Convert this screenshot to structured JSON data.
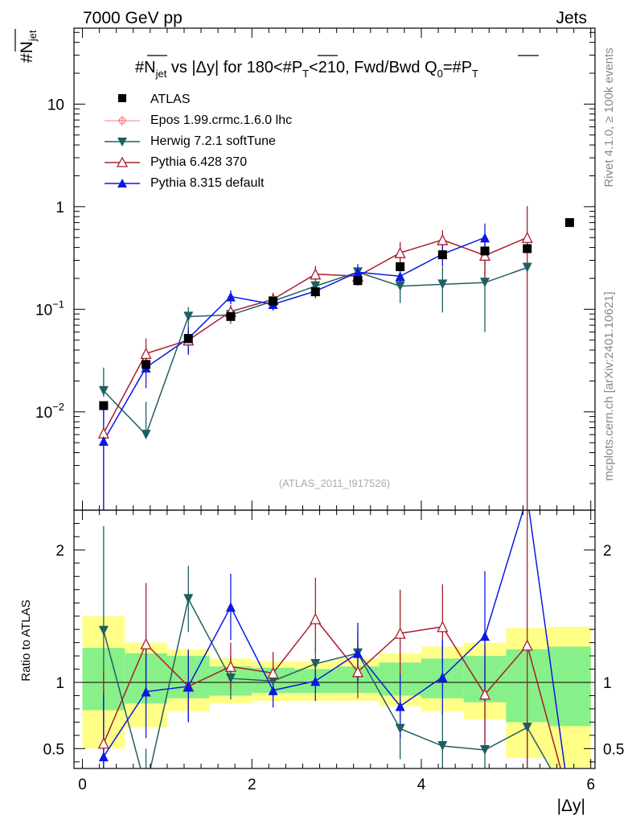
{
  "header": {
    "left": "7000 GeV pp",
    "right": "Jets"
  },
  "side": {
    "rivet": "Rivet 4.1.0, ≥ 100k events",
    "url": "mcplots.cern.ch [arXiv:2401.10621]"
  },
  "watermark": "(ATLAS_2011_I917526)",
  "chart_data": {
    "type": "scatter",
    "title": "#N_jet vs |Δy| for 180<#P_T<210, Fwd/Bwd Q_0=#P_T",
    "title_parts": {
      "a": "#N",
      "a_sub": "jet",
      "b": " vs |Δy|  for 180<#",
      "c": "P",
      "c_sub": "T",
      "d": "<210, Fwd/Bwd Q",
      "d_sub": "0",
      "e": "=#",
      "f": "P",
      "f_sub": "T"
    },
    "ylabel_main": {
      "text": "#N",
      "sub": "jet"
    },
    "ylabel_ratio": "Ratio to ATLAS",
    "xlabel": "|Δy|",
    "xlim": [
      -0.1,
      6.05
    ],
    "ylim_main_log": [
      0.0011,
      55
    ],
    "ylim_ratio": [
      0.35,
      2.3
    ],
    "x_ticks": [
      0,
      2,
      4,
      6
    ],
    "x_tick_labels": [
      "0",
      "2",
      "4",
      "6"
    ],
    "y_ticks_main": [
      {
        "v": 10,
        "base": "10",
        "exp": ""
      },
      {
        "v": 1,
        "base": "1",
        "exp": ""
      },
      {
        "v": 0.1,
        "base": "10",
        "exp": "−1"
      },
      {
        "v": 0.01,
        "base": "10",
        "exp": "−2"
      }
    ],
    "y_ticks_ratio": [
      {
        "v": 0.5,
        "label": "0.5"
      },
      {
        "v": 1,
        "label": "1"
      },
      {
        "v": 2,
        "label": "2"
      }
    ],
    "x": [
      0.25,
      0.75,
      1.25,
      1.75,
      2.25,
      2.75,
      3.25,
      3.75,
      4.25,
      4.75,
      5.25,
      5.75
    ],
    "bin_edges": [
      0,
      0.5,
      1,
      1.5,
      2,
      2.5,
      3,
      3.5,
      4,
      4.5,
      5,
      5.5,
      6
    ],
    "atlas": [
      0.0115,
      0.029,
      0.052,
      0.085,
      0.12,
      0.148,
      0.19,
      0.26,
      0.34,
      0.37,
      0.39,
      0.7
    ],
    "band_inner": [
      [
        0.79,
        1.26
      ],
      [
        0.84,
        1.22
      ],
      [
        0.88,
        1.2
      ],
      [
        0.9,
        1.12
      ],
      [
        0.92,
        1.11
      ],
      [
        0.92,
        1.1
      ],
      [
        0.92,
        1.12
      ],
      [
        0.9,
        1.15
      ],
      [
        0.88,
        1.18
      ],
      [
        0.85,
        1.2
      ],
      [
        0.7,
        1.25
      ],
      [
        0.67,
        1.27
      ]
    ],
    "band_outer": [
      [
        0.5,
        1.5
      ],
      [
        0.66,
        1.3
      ],
      [
        0.78,
        1.25
      ],
      [
        0.84,
        1.18
      ],
      [
        0.86,
        1.16
      ],
      [
        0.86,
        1.16
      ],
      [
        0.86,
        1.18
      ],
      [
        0.82,
        1.22
      ],
      [
        0.78,
        1.27
      ],
      [
        0.72,
        1.3
      ],
      [
        0.43,
        1.41
      ],
      [
        0.36,
        1.42
      ]
    ],
    "legend": [
      "ATLAS",
      "Epos 1.99.crmc.1.6.0 lhc",
      "Herwig 7.2.1 softTune",
      "Pythia 6.428 370",
      "Pythia 8.315 default"
    ],
    "series": [
      {
        "name": "Herwig 7.2.1 softTune",
        "color": "#215e61",
        "marker": "triangle-down",
        "x": [
          0.25,
          0.75,
          1.25,
          1.75,
          2.25,
          2.75,
          3.25,
          3.75,
          4.25,
          4.75,
          5.25
        ],
        "values": [
          0.016,
          0.006,
          0.085,
          0.088,
          0.12,
          0.168,
          0.23,
          0.168,
          0.175,
          0.182,
          0.255
        ],
        "err_lo": [
          0.014,
          0.0055,
          0.068,
          0.072,
          0.105,
          0.15,
          0.19,
          0.115,
          0.093,
          0.06,
          0.25
        ],
        "err_hi": [
          0.027,
          0.0125,
          0.105,
          0.105,
          0.137,
          0.188,
          0.26,
          0.225,
          0.26,
          0.33,
          0.265
        ],
        "ratio": [
          1.39,
          0.2,
          1.63,
          1.03,
          1.01,
          1.14,
          1.22,
          0.65,
          0.52,
          0.49,
          0.66
        ],
        "ratio_lo": [
          0.1,
          0.1,
          1.38,
          0.87,
          0.89,
          1.01,
          1.02,
          0.42,
          0.28,
          0.17,
          0.1
        ],
        "ratio_hi": [
          2.18,
          0.5,
          1.88,
          1.2,
          1.13,
          1.27,
          1.39,
          0.87,
          0.78,
          0.84,
          0.7
        ]
      },
      {
        "name": "Pythia 6.428 370",
        "color": "#a61e2c",
        "marker": "triangle-open",
        "x": [
          0.25,
          0.75,
          1.25,
          1.75,
          2.25,
          2.75,
          3.25,
          3.75,
          4.25,
          4.75,
          5.25
        ],
        "values": [
          0.0062,
          0.037,
          0.05,
          0.095,
          0.125,
          0.22,
          0.21,
          0.355,
          0.475,
          0.335,
          0.5
        ],
        "err_lo": [
          0.001,
          0.026,
          0.037,
          0.081,
          0.105,
          0.185,
          0.17,
          0.27,
          0.385,
          0.19,
          0.001
        ],
        "err_hi": [
          0.0125,
          0.052,
          0.065,
          0.11,
          0.145,
          0.265,
          0.25,
          0.45,
          0.59,
          0.475,
          1.01
        ],
        "ratio": [
          0.54,
          1.29,
          0.97,
          1.12,
          1.07,
          1.48,
          1.08,
          1.37,
          1.42,
          0.91,
          1.28
        ],
        "ratio_lo": [
          0.1,
          0.89,
          0.7,
          0.95,
          0.92,
          1.24,
          0.88,
          1.05,
          1.14,
          0.52,
          0.1
        ],
        "ratio_hi": [
          1.08,
          1.75,
          1.25,
          1.3,
          1.23,
          1.79,
          1.3,
          1.7,
          1.74,
          1.28,
          2.5
        ]
      },
      {
        "name": "Pythia 8.315 default",
        "color": "#0a18e4",
        "marker": "triangle-up",
        "x": [
          0.25,
          0.75,
          1.25,
          1.75,
          2.25,
          2.75,
          3.25,
          3.75,
          4.25,
          4.75
        ],
        "values": [
          0.0052,
          0.027,
          0.052,
          0.133,
          0.112,
          0.15,
          0.23,
          0.21,
          0.345,
          0.5
        ],
        "err_lo": [
          0.001,
          0.017,
          0.036,
          0.112,
          0.097,
          0.128,
          0.185,
          0.152,
          0.262,
          0.315
        ],
        "err_hi": [
          0.0107,
          0.037,
          0.068,
          0.153,
          0.127,
          0.172,
          0.275,
          0.268,
          0.428,
          0.685
        ],
        "ratio": [
          0.44,
          0.93,
          0.97,
          1.57,
          0.94,
          1.01,
          1.22,
          0.82,
          1.04,
          1.35
        ],
        "ratio_lo": [
          0.1,
          0.58,
          0.7,
          1.32,
          0.81,
          0.86,
          0.99,
          0.58,
          0.76,
          0.86
        ],
        "ratio_hi": [
          0.92,
          1.28,
          1.24,
          1.82,
          1.07,
          1.16,
          1.45,
          1.06,
          1.32,
          1.84
        ]
      }
    ],
    "pythia8_ratio_tail": [
      2.4,
      0.1
    ]
  }
}
